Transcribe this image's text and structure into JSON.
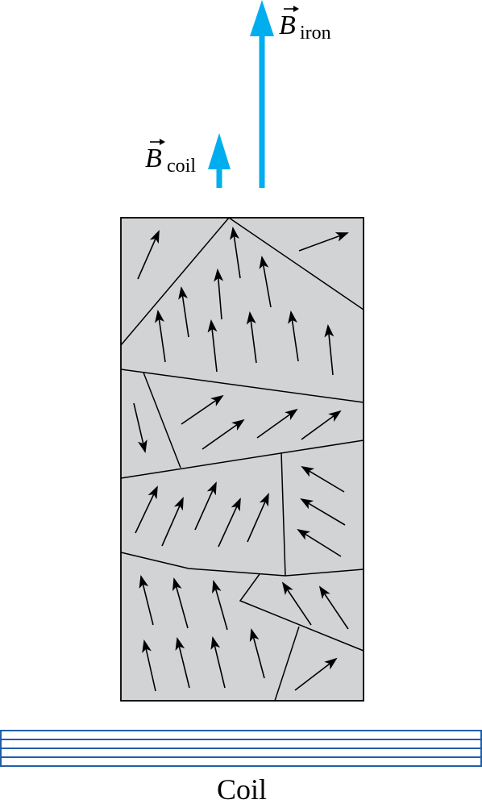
{
  "labels": {
    "b_coil_symbol": "B",
    "b_coil_subscript": "coil",
    "b_iron_symbol": "B",
    "b_iron_subscript": "iron",
    "coil_caption": "Coil"
  },
  "colors": {
    "field_arrow": "#00aeef",
    "coil_lines": "#1f5fa8",
    "iron_fill": "#d1d3d4",
    "domain_border": "#000000",
    "moment_arrow": "#000000"
  },
  "icons": {
    "field_arrow": "thick-up-arrow-icon",
    "moment_arrow": "thin-arrow-icon"
  }
}
